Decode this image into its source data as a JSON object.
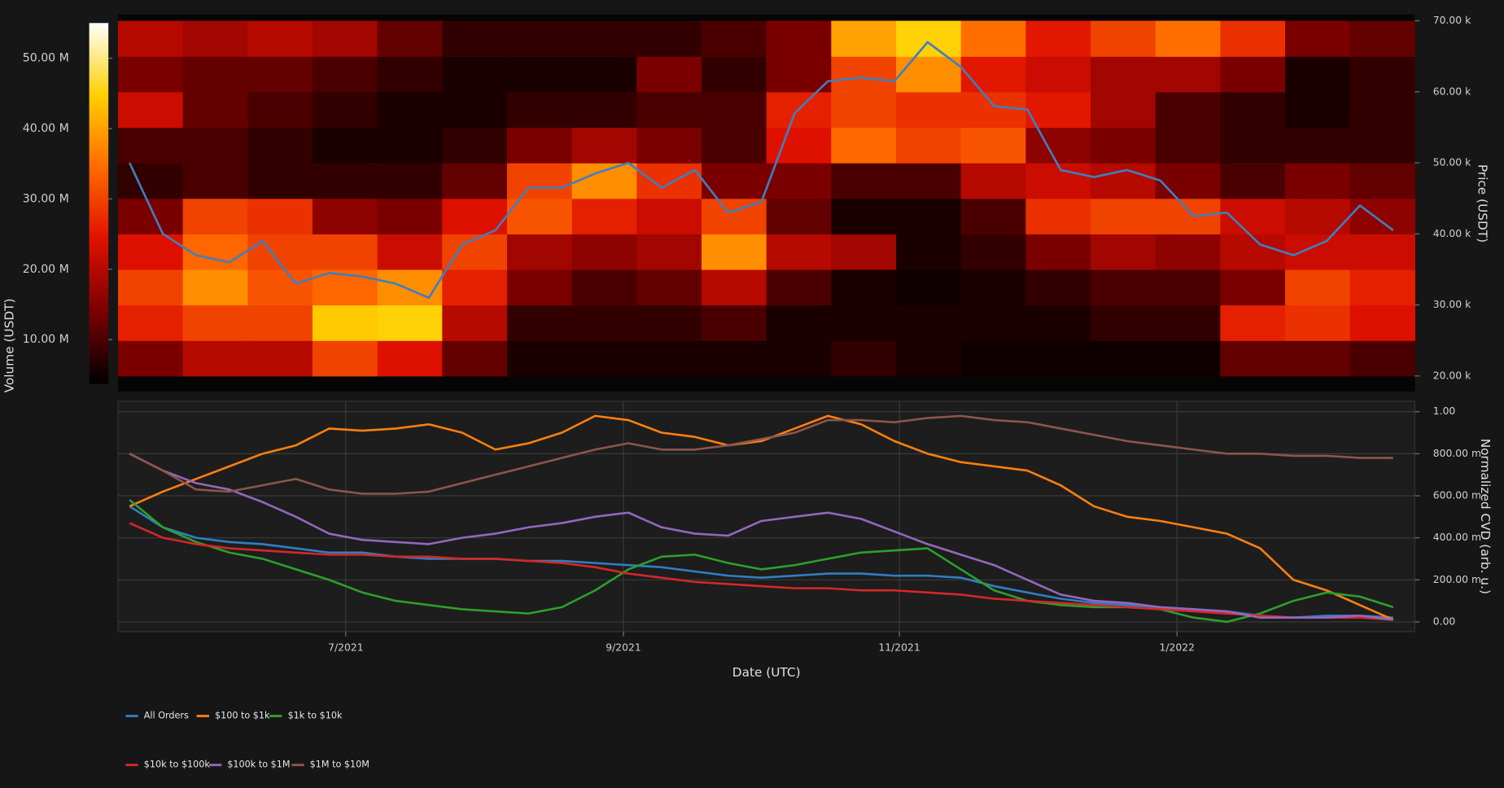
{
  "chart_data": [
    {
      "type": "heatmap",
      "x_bins": [
        2021.363,
        2021.402,
        2021.441,
        2021.48,
        2021.519,
        2021.558,
        2021.597,
        2021.636,
        2021.675,
        2021.714,
        2021.753,
        2021.792,
        2021.831,
        2021.87,
        2021.909,
        2021.948,
        2021.987,
        2022.026,
        2022.065,
        2022.104,
        2022.143
      ],
      "y_bins": [
        20,
        25,
        30,
        35,
        40,
        45,
        50,
        55,
        60,
        65,
        70
      ],
      "z": [
        [
          14,
          20,
          20,
          30,
          24,
          12,
          6,
          6,
          6,
          6,
          6,
          8,
          6,
          5,
          5,
          5,
          5,
          12,
          12,
          10
        ],
        [
          26,
          30,
          30,
          44,
          45,
          20,
          8,
          8,
          8,
          10,
          6,
          6,
          6,
          6,
          6,
          8,
          8,
          26,
          28,
          24
        ],
        [
          30,
          38,
          32,
          34,
          38,
          26,
          14,
          10,
          12,
          20,
          10,
          6,
          5,
          6,
          8,
          10,
          10,
          14,
          30,
          26
        ],
        [
          24,
          34,
          30,
          30,
          22,
          30,
          18,
          16,
          18,
          38,
          20,
          18,
          6,
          8,
          14,
          18,
          16,
          20,
          22,
          22
        ],
        [
          14,
          30,
          28,
          16,
          14,
          24,
          32,
          26,
          22,
          30,
          12,
          6,
          6,
          10,
          28,
          30,
          30,
          22,
          20,
          16
        ],
        [
          8,
          10,
          8,
          8,
          8,
          12,
          30,
          38,
          28,
          14,
          14,
          10,
          10,
          20,
          22,
          20,
          14,
          10,
          14,
          12
        ],
        [
          10,
          10,
          8,
          6,
          6,
          8,
          14,
          18,
          14,
          10,
          24,
          34,
          30,
          32,
          16,
          14,
          10,
          8,
          8,
          8
        ],
        [
          22,
          12,
          10,
          8,
          6,
          6,
          8,
          8,
          10,
          10,
          26,
          30,
          28,
          28,
          25,
          18,
          10,
          8,
          6,
          8
        ],
        [
          14,
          12,
          12,
          10,
          8,
          6,
          6,
          6,
          14,
          8,
          14,
          30,
          38,
          25,
          22,
          18,
          18,
          14,
          6,
          8
        ],
        [
          20,
          18,
          20,
          18,
          12,
          8,
          8,
          8,
          8,
          10,
          14,
          40,
          45,
          35,
          25,
          30,
          35,
          28,
          14,
          12
        ]
      ],
      "colorscale": [
        "#000000",
        "#7a0000",
        "#e01000",
        "#ff6a00",
        "#ffd000",
        "#ffffff"
      ],
      "zlim": [
        3.7,
        55
      ],
      "zticks": [
        {
          "value": 10,
          "label": "10.00 M"
        },
        {
          "value": 20,
          "label": "20.00 M"
        },
        {
          "value": 30,
          "label": "30.00 M"
        },
        {
          "value": 40,
          "label": "40.00 M"
        },
        {
          "value": 50,
          "label": "50.00 M"
        }
      ],
      "z_label": "Volume (USDT)",
      "y_label": "Price (USDT)",
      "ylim": [
        17.8,
        70.9
      ],
      "yticks": [
        {
          "value": 20,
          "label": "20.00 k"
        },
        {
          "value": 30,
          "label": "30.00 k"
        },
        {
          "value": 40,
          "label": "40.00 k"
        },
        {
          "value": 50,
          "label": "50.00 k"
        },
        {
          "value": 60,
          "label": "60.00 k"
        },
        {
          "value": 70,
          "label": "70.00 k"
        }
      ],
      "xlim": [
        2021.363,
        2022.143
      ],
      "x": [
        2021.37,
        2021.39,
        2021.41,
        2021.43,
        2021.45,
        2021.47,
        2021.49,
        2021.51,
        2021.53,
        2021.55,
        2021.57,
        2021.59,
        2021.61,
        2021.63,
        2021.65,
        2021.67,
        2021.69,
        2021.71,
        2021.73,
        2021.75,
        2021.77,
        2021.79,
        2021.81,
        2021.83,
        2021.85,
        2021.87,
        2021.89,
        2021.91,
        2021.93,
        2021.95,
        2021.97,
        2021.99,
        2022.01,
        2022.03,
        2022.05,
        2022.07,
        2022.09,
        2022.11,
        2022.13
      ],
      "line": {
        "color": "#3d80c0",
        "values": [
          50,
          40,
          37,
          36,
          39,
          33,
          34.5,
          34,
          33,
          31,
          38.5,
          40.5,
          46.5,
          46.5,
          48.5,
          50,
          46.5,
          49,
          43,
          44.5,
          57,
          61.5,
          62,
          61.5,
          67,
          63.5,
          58,
          57.5,
          49,
          48,
          49,
          47.5,
          42.5,
          43,
          38.5,
          37,
          39,
          44,
          40.5
        ]
      }
    },
    {
      "type": "line",
      "x_label": "Date (UTC)",
      "y_label": "Normalized CVD (arb. u.)",
      "xlim": [
        2021.363,
        2022.143
      ],
      "xticks": [
        {
          "value": 2021.5,
          "label": "7/2021"
        },
        {
          "value": 2021.667,
          "label": "9/2021"
        },
        {
          "value": 2021.833,
          "label": "11/2021"
        },
        {
          "value": 2022,
          "label": "1/2022"
        }
      ],
      "ylim": [
        -0.046,
        1.05
      ],
      "yticks": [
        {
          "value": 0,
          "label": "0.00"
        },
        {
          "value": 0.2,
          "label": "200.00 m"
        },
        {
          "value": 0.4,
          "label": "400.00 m"
        },
        {
          "value": 0.6,
          "label": "600.00 m"
        },
        {
          "value": 0.8,
          "label": "800.00 m"
        },
        {
          "value": 1,
          "label": "1.00"
        }
      ],
      "grid": true,
      "x": [
        2021.37,
        2021.39,
        2021.41,
        2021.43,
        2021.45,
        2021.47,
        2021.49,
        2021.51,
        2021.53,
        2021.55,
        2021.57,
        2021.59,
        2021.61,
        2021.63,
        2021.65,
        2021.67,
        2021.69,
        2021.71,
        2021.73,
        2021.75,
        2021.77,
        2021.79,
        2021.81,
        2021.83,
        2021.85,
        2021.87,
        2021.89,
        2021.91,
        2021.93,
        2021.95,
        2021.97,
        2021.99,
        2022.01,
        2022.03,
        2022.05,
        2022.07,
        2022.09,
        2022.11,
        2022.13
      ],
      "series": [
        {
          "name": "All Orders",
          "color": "#2f7ec4",
          "values": [
            0.55,
            0.45,
            0.4,
            0.38,
            0.37,
            0.35,
            0.33,
            0.33,
            0.31,
            0.3,
            0.3,
            0.3,
            0.29,
            0.29,
            0.28,
            0.27,
            0.26,
            0.24,
            0.22,
            0.21,
            0.22,
            0.23,
            0.23,
            0.22,
            0.22,
            0.21,
            0.17,
            0.14,
            0.11,
            0.09,
            0.08,
            0.07,
            0.06,
            0.05,
            0.03,
            0.02,
            0.03,
            0.03,
            0.02
          ]
        },
        {
          "name": "$100 to $1k",
          "color": "#ff7f0e",
          "values": [
            0.55,
            0.62,
            0.68,
            0.74,
            0.8,
            0.84,
            0.92,
            0.91,
            0.92,
            0.94,
            0.9,
            0.82,
            0.85,
            0.9,
            0.98,
            0.96,
            0.9,
            0.88,
            0.84,
            0.86,
            0.92,
            0.98,
            0.94,
            0.86,
            0.8,
            0.76,
            0.74,
            0.72,
            0.65,
            0.55,
            0.5,
            0.48,
            0.45,
            0.42,
            0.35,
            0.2,
            0.15,
            0.08,
            0.01
          ]
        },
        {
          "name": "$1k to $10k",
          "color": "#2ca02c",
          "values": [
            0.58,
            0.45,
            0.38,
            0.33,
            0.3,
            0.25,
            0.2,
            0.14,
            0.1,
            0.08,
            0.06,
            0.05,
            0.04,
            0.07,
            0.15,
            0.25,
            0.31,
            0.32,
            0.28,
            0.25,
            0.27,
            0.3,
            0.33,
            0.34,
            0.35,
            0.25,
            0.15,
            0.1,
            0.08,
            0.07,
            0.07,
            0.06,
            0.02,
            0,
            0.04,
            0.1,
            0.14,
            0.12,
            0.07
          ]
        },
        {
          "name": "$10k to $100k",
          "color": "#d62728",
          "values": [
            0.47,
            0.4,
            0.37,
            0.35,
            0.34,
            0.33,
            0.32,
            0.32,
            0.31,
            0.31,
            0.3,
            0.3,
            0.29,
            0.28,
            0.26,
            0.23,
            0.21,
            0.19,
            0.18,
            0.17,
            0.16,
            0.16,
            0.15,
            0.15,
            0.14,
            0.13,
            0.11,
            0.1,
            0.09,
            0.08,
            0.07,
            0.06,
            0.05,
            0.04,
            0.03,
            0.02,
            0.02,
            0.02,
            0.01
          ]
        },
        {
          "name": "$100k to $1M",
          "color": "#9467bd",
          "values": [
            0.8,
            0.72,
            0.66,
            0.63,
            0.57,
            0.5,
            0.42,
            0.39,
            0.38,
            0.37,
            0.4,
            0.42,
            0.45,
            0.47,
            0.5,
            0.52,
            0.45,
            0.42,
            0.41,
            0.48,
            0.5,
            0.52,
            0.49,
            0.43,
            0.37,
            0.32,
            0.27,
            0.2,
            0.13,
            0.1,
            0.09,
            0.07,
            0.06,
            0.05,
            0.02,
            0.02,
            0.02,
            0.03,
            0.01
          ]
        },
        {
          "name": "$1M to $10M",
          "color": "#8c564b",
          "values": [
            0.8,
            0.72,
            0.63,
            0.62,
            0.65,
            0.68,
            0.63,
            0.61,
            0.61,
            0.62,
            0.66,
            0.7,
            0.74,
            0.78,
            0.82,
            0.85,
            0.82,
            0.82,
            0.84,
            0.87,
            0.9,
            0.96,
            0.96,
            0.95,
            0.97,
            0.98,
            0.96,
            0.95,
            0.92,
            0.89,
            0.86,
            0.84,
            0.82,
            0.8,
            0.8,
            0.79,
            0.79,
            0.78,
            0.78
          ]
        }
      ]
    }
  ]
}
